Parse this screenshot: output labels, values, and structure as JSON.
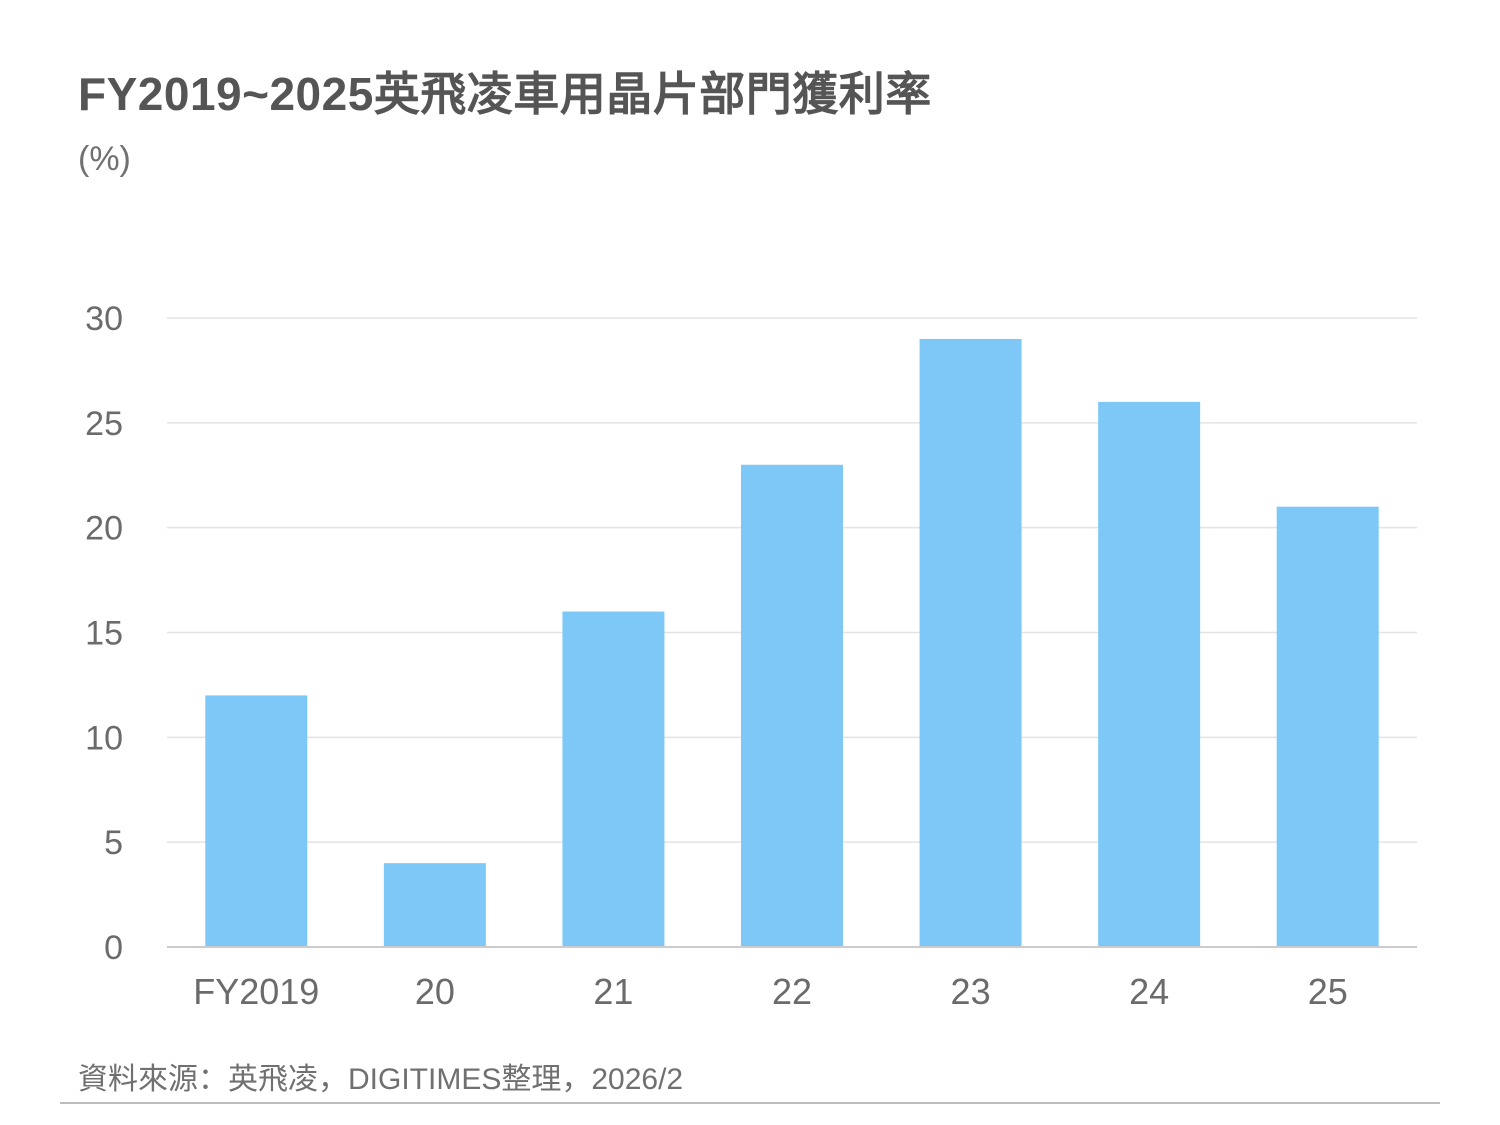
{
  "header": {
    "title": "FY2019~2025英飛凌車用晶片部門獲利率",
    "unit": "(%)"
  },
  "footer": {
    "source": "資料來源：英飛凌，DIGITIMES整理，2026/2"
  },
  "chart_data": {
    "type": "bar",
    "title": "FY2019~2025英飛凌車用晶片部門獲利率",
    "ylabel": "(%)",
    "xlabel": "",
    "categories": [
      "FY2019",
      "20",
      "21",
      "22",
      "23",
      "24",
      "25"
    ],
    "values": [
      12,
      4,
      16,
      23,
      29,
      26,
      21
    ],
    "ylim": [
      0,
      30
    ],
    "yticks": [
      0,
      5,
      10,
      15,
      20,
      25,
      30
    ],
    "grid": true,
    "bar_color": "#7ec8f8",
    "grid_color": "#e3e3e3",
    "axis_color": "#cccccc",
    "tick_label_color": "#6b6b6b"
  }
}
